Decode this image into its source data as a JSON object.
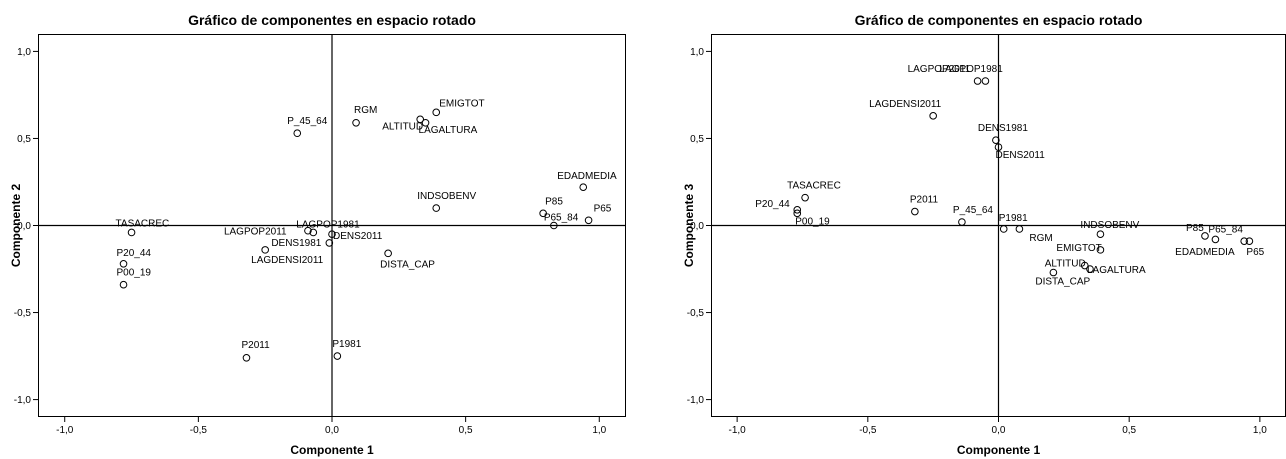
{
  "chart_data": [
    {
      "type": "scatter",
      "title": "Gráfico de componentes en espacio rotado",
      "xlabel": "Componente 1",
      "ylabel": "Componente 2",
      "xlim": [
        -1.1,
        1.1
      ],
      "ylim": [
        -1.1,
        1.1
      ],
      "xticks": [
        -1.0,
        -0.5,
        0.0,
        0.5,
        1.0
      ],
      "yticks": [
        -1.0,
        -0.5,
        0.0,
        0.5,
        1.0
      ],
      "xtick_labels": [
        "-1,0",
        "-0,5",
        "0,0",
        "0,5",
        "1,0"
      ],
      "ytick_labels": [
        "-1,0",
        "-0,5",
        "0,0",
        "0,5",
        "1,0"
      ],
      "grid": false,
      "points": [
        {
          "label": "TASACREC",
          "x": -0.75,
          "y": -0.04
        },
        {
          "label": "P20_44",
          "x": -0.78,
          "y": -0.22
        },
        {
          "label": "P00_19",
          "x": -0.78,
          "y": -0.34
        },
        {
          "label": "LAGPOP2011",
          "x": -0.09,
          "y": -0.03
        },
        {
          "label": "LAGPOP1981",
          "x": -0.07,
          "y": -0.04
        },
        {
          "label": "DENS2011",
          "x": 0.0,
          "y": -0.05
        },
        {
          "label": "DENS1981",
          "x": -0.01,
          "y": -0.1
        },
        {
          "label": "LAGDENSI2011",
          "x": -0.25,
          "y": -0.14
        },
        {
          "label": "P_45_64",
          "x": -0.13,
          "y": 0.53
        },
        {
          "label": "RGM",
          "x": 0.09,
          "y": 0.59
        },
        {
          "label": "ALTITUD",
          "x": 0.33,
          "y": 0.61
        },
        {
          "label": "LAGALTURA",
          "x": 0.35,
          "y": 0.59
        },
        {
          "label": "EMIGTOT",
          "x": 0.39,
          "y": 0.65
        },
        {
          "label": "INDSOBENV",
          "x": 0.39,
          "y": 0.1
        },
        {
          "label": "DISTA_CAP",
          "x": 0.21,
          "y": -0.16
        },
        {
          "label": "EDADMEDIA",
          "x": 0.94,
          "y": 0.22
        },
        {
          "label": "P85",
          "x": 0.79,
          "y": 0.07
        },
        {
          "label": "P65_84",
          "x": 0.83,
          "y": 0.0
        },
        {
          "label": "P65",
          "x": 0.96,
          "y": 0.03
        },
        {
          "label": "P2011",
          "x": -0.32,
          "y": -0.76
        },
        {
          "label": "P1981",
          "x": 0.02,
          "y": -0.75
        }
      ]
    },
    {
      "type": "scatter",
      "title": "Gráfico de componentes en espacio rotado",
      "xlabel": "Componente 1",
      "ylabel": "Componente 3",
      "xlim": [
        -1.1,
        1.1
      ],
      "ylim": [
        -1.1,
        1.1
      ],
      "xticks": [
        -1.0,
        -0.5,
        0.0,
        0.5,
        1.0
      ],
      "yticks": [
        -1.0,
        -0.5,
        0.0,
        0.5,
        1.0
      ],
      "xtick_labels": [
        "-1,0",
        "-0,5",
        "0,0",
        "0,5",
        "1,0"
      ],
      "ytick_labels": [
        "-1,0",
        "-0,5",
        "0,0",
        "0,5",
        "1,0"
      ],
      "grid": false,
      "points": [
        {
          "label": "LAGPOP1981",
          "x": -0.05,
          "y": 0.83
        },
        {
          "label": "LAGPOP2011",
          "x": -0.08,
          "y": 0.83
        },
        {
          "label": "LAGDENSI2011",
          "x": -0.25,
          "y": 0.63
        },
        {
          "label": "DENS1981",
          "x": -0.01,
          "y": 0.49
        },
        {
          "label": "DENS2011",
          "x": 0.0,
          "y": 0.45
        },
        {
          "label": "TASACREC",
          "x": -0.74,
          "y": 0.16
        },
        {
          "label": "P20_44",
          "x": -0.77,
          "y": 0.09
        },
        {
          "label": "P00_19",
          "x": -0.77,
          "y": 0.07
        },
        {
          "label": "P2011",
          "x": -0.32,
          "y": 0.08
        },
        {
          "label": "P_45_64",
          "x": -0.14,
          "y": 0.02
        },
        {
          "label": "P1981",
          "x": 0.02,
          "y": -0.02
        },
        {
          "label": "RGM",
          "x": 0.08,
          "y": -0.02
        },
        {
          "label": "INDSOBENV",
          "x": 0.39,
          "y": -0.05
        },
        {
          "label": "EMIGTOT",
          "x": 0.39,
          "y": -0.14
        },
        {
          "label": "ALTITUD",
          "x": 0.33,
          "y": -0.23
        },
        {
          "label": "LAGALTURA",
          "x": 0.35,
          "y": -0.25
        },
        {
          "label": "DISTA_CAP",
          "x": 0.21,
          "y": -0.27
        },
        {
          "label": "P85",
          "x": 0.79,
          "y": -0.06
        },
        {
          "label": "P65_84",
          "x": 0.83,
          "y": -0.08
        },
        {
          "label": "EDADMEDIA",
          "x": 0.94,
          "y": -0.09
        },
        {
          "label": "P65",
          "x": 0.96,
          "y": -0.09
        }
      ]
    }
  ]
}
